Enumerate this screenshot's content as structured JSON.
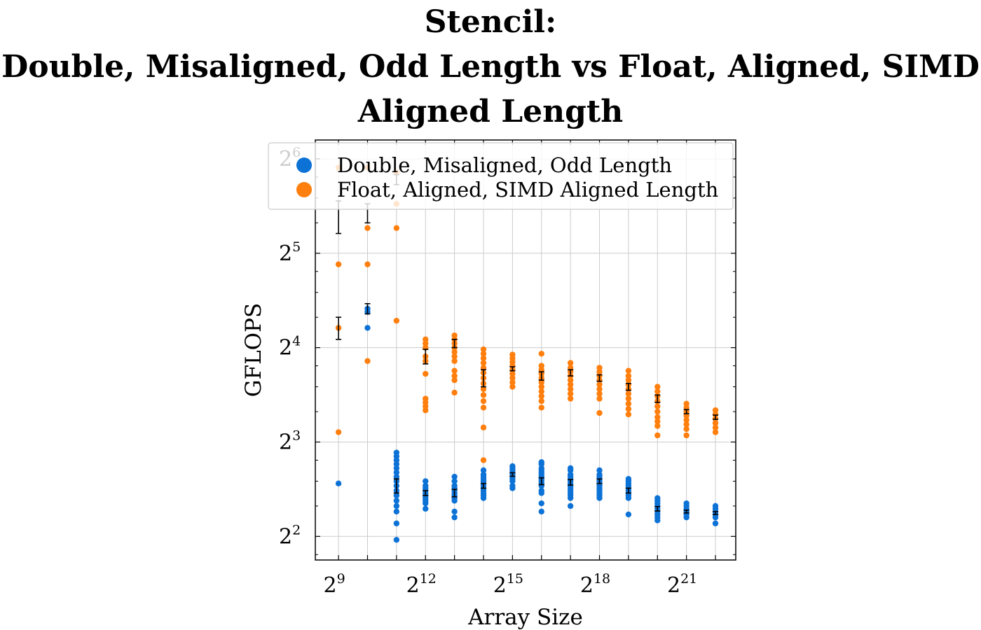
{
  "title": {
    "line1": "Stencil:",
    "line2": "Double, Misaligned, Odd Length vs Float, Aligned, SIMD",
    "line3": "Aligned Length"
  },
  "chart_data": {
    "type": "scatter",
    "xlabel": "Array Size",
    "ylabel": "GFLOPS",
    "x_scale": "log2",
    "y_scale": "log2",
    "xlim_exp": [
      8.2,
      22.7
    ],
    "ylim_exp": [
      1.75,
      6.2
    ],
    "grid": true,
    "legend_position": "top-right",
    "x_ticks": [
      {
        "base": "2",
        "exp": "9",
        "value_exp": 9
      },
      {
        "base": "2",
        "exp": "12",
        "value_exp": 12
      },
      {
        "base": "2",
        "exp": "15",
        "value_exp": 15
      },
      {
        "base": "2",
        "exp": "18",
        "value_exp": 18
      },
      {
        "base": "2",
        "exp": "21",
        "value_exp": 21
      }
    ],
    "y_ticks": [
      {
        "base": "2",
        "exp": "2",
        "value_exp": 2
      },
      {
        "base": "2",
        "exp": "3",
        "value_exp": 3
      },
      {
        "base": "2",
        "exp": "4",
        "value_exp": 4
      },
      {
        "base": "2",
        "exp": "5",
        "value_exp": 5
      },
      {
        "base": "2",
        "exp": "6",
        "value_exp": 6
      }
    ],
    "series": [
      {
        "name": "Double, Misaligned, Odd Length",
        "color": "#0d72d6",
        "points": [
          {
            "x_exp": 9,
            "y": [
              5.9,
              18.5
            ]
          },
          {
            "x_exp": 10,
            "y": [
              18.5,
              20.8,
              21.3
            ]
          },
          {
            "x_exp": 11,
            "y": [
              3.9,
              4.4,
              4.8,
              5.0,
              5.2,
              5.4,
              5.6,
              5.8,
              6.0,
              6.2,
              6.4,
              6.6,
              6.8,
              7.0,
              7.2,
              7.4
            ]
          },
          {
            "x_exp": 12,
            "y": [
              4.9,
              5.1,
              5.2,
              5.3,
              5.4,
              5.5,
              5.6,
              5.7,
              5.8,
              6.0
            ]
          },
          {
            "x_exp": 13,
            "y": [
              4.6,
              4.8,
              5.2,
              5.3,
              5.4,
              5.5,
              5.6,
              5.7,
              5.8,
              6.0,
              6.2
            ]
          },
          {
            "x_exp": 14,
            "y": [
              5.3,
              5.4,
              5.5,
              5.6,
              5.7,
              5.8,
              5.9,
              6.0,
              6.1,
              6.2,
              6.3,
              6.5
            ]
          },
          {
            "x_exp": 15,
            "y": [
              5.7,
              5.8,
              6.0,
              6.1,
              6.2,
              6.3,
              6.4,
              6.5,
              6.6,
              6.7
            ]
          },
          {
            "x_exp": 16,
            "y": [
              4.8,
              5.1,
              5.5,
              5.6,
              5.8,
              5.9,
              6.0,
              6.1,
              6.2,
              6.3,
              6.4,
              6.5,
              6.6,
              6.8,
              6.9
            ]
          },
          {
            "x_exp": 17,
            "y": [
              5.0,
              5.3,
              5.4,
              5.5,
              5.6,
              5.7,
              5.8,
              5.9,
              6.0,
              6.1,
              6.2,
              6.3,
              6.5,
              6.6
            ]
          },
          {
            "x_exp": 18,
            "y": [
              5.3,
              5.4,
              5.5,
              5.6,
              5.7,
              5.8,
              5.9,
              6.0,
              6.1,
              6.2,
              6.3,
              6.5
            ]
          },
          {
            "x_exp": 19,
            "y": [
              4.7,
              5.3,
              5.4,
              5.5,
              5.6,
              5.7,
              5.8,
              5.9,
              6.0,
              6.1
            ]
          },
          {
            "x_exp": 20,
            "y": [
              4.5,
              4.6,
              4.7,
              4.8,
              4.9,
              5.0,
              5.1,
              5.2,
              5.3
            ]
          },
          {
            "x_exp": 21,
            "y": [
              4.6,
              4.7,
              4.8,
              4.9,
              5.0,
              5.1
            ]
          },
          {
            "x_exp": 22,
            "y": [
              4.4,
              4.6,
              4.7,
              4.8,
              4.9,
              5.0
            ]
          }
        ],
        "means": [
          {
            "x_exp": 11,
            "y": 5.8,
            "err": 0.3
          },
          {
            "x_exp": 12,
            "y": 5.5,
            "err": 0.1
          },
          {
            "x_exp": 13,
            "y": 5.5,
            "err": 0.15
          },
          {
            "x_exp": 14,
            "y": 5.8,
            "err": 0.1
          },
          {
            "x_exp": 15,
            "y": 6.3,
            "err": 0.08
          },
          {
            "x_exp": 16,
            "y": 6.0,
            "err": 0.15
          },
          {
            "x_exp": 17,
            "y": 5.95,
            "err": 0.12
          },
          {
            "x_exp": 18,
            "y": 6.0,
            "err": 0.1
          },
          {
            "x_exp": 19,
            "y": 5.6,
            "err": 0.1
          },
          {
            "x_exp": 20,
            "y": 4.9,
            "err": 0.08
          },
          {
            "x_exp": 21,
            "y": 4.8,
            "err": 0.05
          },
          {
            "x_exp": 22,
            "y": 4.75,
            "err": 0.05
          }
        ]
      },
      {
        "name": "Float, Aligned, SIMD Aligned Length",
        "color": "#ff7f0e",
        "points": [
          {
            "x_exp": 9,
            "y": [
              8.6,
              18.5,
              29.5,
              60
            ]
          },
          {
            "x_exp": 10,
            "y": [
              14.5,
              29.5,
              38.5,
              60
            ]
          },
          {
            "x_exp": 11,
            "y": [
              19.5,
              38.5,
              46,
              58
            ]
          },
          {
            "x_exp": 12,
            "y": [
              10.1,
              10.4,
              10.7,
              11.0,
              13.2,
              14.5,
              15.0,
              16.0,
              16.5,
              17.0
            ]
          },
          {
            "x_exp": 13,
            "y": [
              11.5,
              12.6,
              13.0,
              13.5,
              14.5,
              15.0,
              15.5,
              16.0,
              16.5,
              17.0,
              17.5
            ]
          },
          {
            "x_exp": 14,
            "y": [
              7.0,
              8.9,
              10.3,
              10.8,
              11.3,
              11.8,
              12.3,
              12.8,
              13.3,
              13.8,
              14.3,
              14.8,
              15.3,
              15.8
            ]
          },
          {
            "x_exp": 15,
            "y": [
              12.0,
              12.4,
              12.8,
              13.2,
              13.6,
              14.0,
              14.4,
              14.8,
              15.2
            ]
          },
          {
            "x_exp": 16,
            "y": [
              10.3,
              10.8,
              11.2,
              11.6,
              12.0,
              12.4,
              12.8,
              13.2,
              13.6,
              14.0,
              15.3
            ]
          },
          {
            "x_exp": 17,
            "y": [
              11.0,
              11.4,
              11.8,
              12.2,
              12.6,
              13.0,
              13.4,
              13.8,
              14.3
            ]
          },
          {
            "x_exp": 18,
            "y": [
              9.9,
              11.0,
              11.4,
              11.8,
              12.2,
              12.6,
              13.0,
              13.4,
              13.8
            ]
          },
          {
            "x_exp": 19,
            "y": [
              9.8,
              10.2,
              10.6,
              11.0,
              11.4,
              11.8,
              12.2,
              12.6,
              13.0,
              13.5
            ]
          },
          {
            "x_exp": 20,
            "y": [
              8.4,
              9.0,
              9.3,
              9.6,
              10.0,
              10.4,
              10.8,
              11.2,
              11.6,
              12.0
            ]
          },
          {
            "x_exp": 21,
            "y": [
              8.4,
              8.8,
              9.1,
              9.4,
              9.7,
              10.0,
              10.3,
              10.6
            ]
          },
          {
            "x_exp": 22,
            "y": [
              8.6,
              8.9,
              9.2,
              9.5,
              9.8,
              10.1
            ]
          }
        ],
        "means": [
          {
            "x_exp": 9,
            "y": 18.5,
            "err": 1.5
          },
          {
            "x_exp": 9,
            "y": 42,
            "err": 5
          },
          {
            "x_exp": 10,
            "y": 21.3,
            "err": 0.8
          },
          {
            "x_exp": 10,
            "y": 43,
            "err": 3
          },
          {
            "x_exp": 11,
            "y": 55,
            "err": 2
          },
          {
            "x_exp": 12,
            "y": 15.0,
            "err": 0.8
          },
          {
            "x_exp": 13,
            "y": 16.5,
            "err": 0.5
          },
          {
            "x_exp": 14,
            "y": 12.8,
            "err": 0.8
          },
          {
            "x_exp": 15,
            "y": 13.7,
            "err": 0.2
          },
          {
            "x_exp": 16,
            "y": 13.0,
            "err": 0.4
          },
          {
            "x_exp": 17,
            "y": 13.3,
            "err": 0.3
          },
          {
            "x_exp": 18,
            "y": 12.8,
            "err": 0.3
          },
          {
            "x_exp": 19,
            "y": 12.0,
            "err": 0.3
          },
          {
            "x_exp": 20,
            "y": 11.0,
            "err": 0.3
          },
          {
            "x_exp": 21,
            "y": 10.0,
            "err": 0.15
          },
          {
            "x_exp": 22,
            "y": 9.6,
            "err": 0.15
          }
        ]
      }
    ]
  }
}
